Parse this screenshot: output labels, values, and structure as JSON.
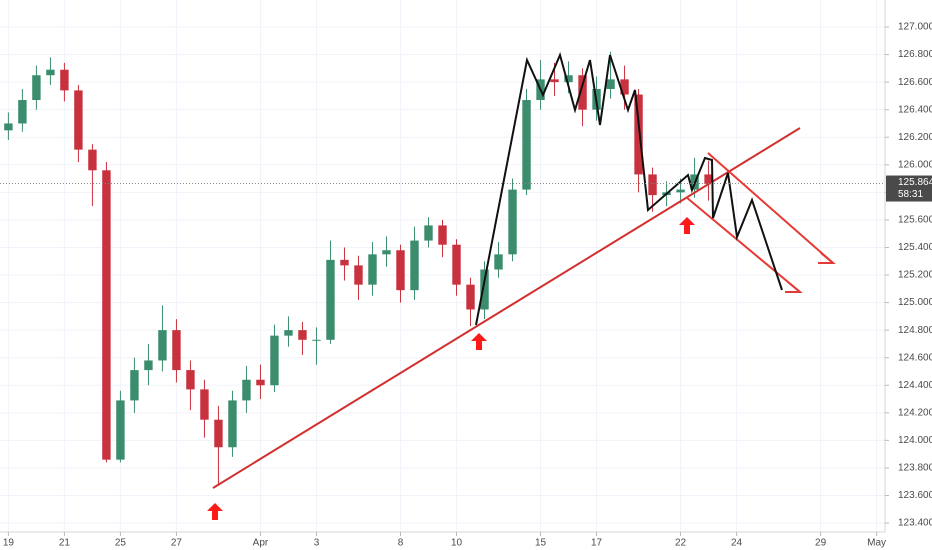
{
  "chart_data": {
    "type": "candlestick",
    "x": [
      0,
      0.5,
      1,
      1.5,
      2,
      2.5,
      3,
      3.5,
      4,
      4.5,
      5,
      5.5,
      6,
      6.5,
      7,
      7.5,
      8,
      8.5,
      9,
      9.5,
      10,
      10.5,
      11,
      11.5,
      12,
      12.5,
      13,
      13.5,
      14,
      14.5,
      15,
      15.5,
      16,
      16.5,
      17,
      17.5,
      18,
      18.5,
      19,
      19.5,
      20,
      20.5,
      21,
      21.5,
      22,
      22.5,
      23,
      23.5,
      24,
      24.5,
      25
    ],
    "open": [
      126.25,
      126.3,
      126.47,
      126.65,
      126.69,
      126.54,
      126.11,
      125.96,
      123.86,
      124.29,
      124.51,
      124.58,
      124.8,
      124.51,
      124.37,
      124.15,
      123.95,
      124.29,
      124.44,
      124.4,
      124.76,
      124.8,
      124.73,
      124.73,
      125.31,
      125.27,
      125.13,
      125.35,
      125.38,
      125.09,
      125.45,
      125.56,
      125.42,
      125.13,
      124.95,
      125.24,
      125.35,
      125.82,
      126.47,
      126.62,
      126.6,
      126.65,
      126.4,
      126.55,
      126.62,
      126.51,
      125.93,
      125.78,
      125.8,
      125.82,
      125.93
    ],
    "high": [
      126.38,
      126.55,
      126.72,
      126.78,
      126.74,
      126.58,
      126.15,
      126.02,
      124.36,
      124.6,
      124.7,
      124.98,
      124.88,
      124.58,
      124.44,
      124.25,
      124.36,
      124.54,
      124.55,
      124.84,
      124.9,
      124.86,
      124.82,
      125.45,
      125.4,
      125.34,
      125.44,
      125.48,
      125.42,
      125.55,
      125.62,
      125.6,
      125.46,
      125.18,
      125.3,
      125.44,
      125.9,
      126.55,
      126.76,
      126.74,
      126.75,
      126.7,
      126.64,
      126.82,
      126.72,
      126.55,
      125.98,
      125.88,
      125.9,
      126.05,
      126.03
    ],
    "low": [
      126.18,
      126.24,
      126.4,
      126.58,
      126.46,
      126.02,
      125.7,
      123.84,
      123.84,
      124.2,
      124.4,
      124.5,
      124.42,
      124.22,
      124.02,
      123.68,
      123.88,
      124.2,
      124.3,
      124.35,
      124.68,
      124.62,
      124.55,
      124.7,
      125.16,
      125.02,
      125.05,
      125.26,
      125.0,
      125.02,
      125.4,
      125.33,
      125.05,
      124.83,
      124.88,
      125.18,
      125.3,
      125.78,
      126.4,
      126.5,
      126.52,
      126.28,
      126.32,
      126.48,
      126.4,
      125.8,
      125.66,
      125.7,
      125.72,
      125.76,
      125.74
    ],
    "close": [
      126.3,
      126.47,
      126.65,
      126.69,
      126.54,
      126.11,
      125.96,
      123.86,
      124.29,
      124.51,
      124.58,
      124.8,
      124.51,
      124.37,
      124.15,
      123.95,
      124.29,
      124.44,
      124.4,
      124.76,
      124.8,
      124.73,
      124.73,
      125.31,
      125.27,
      125.13,
      125.35,
      125.38,
      125.09,
      125.45,
      125.56,
      125.42,
      125.13,
      124.95,
      125.24,
      125.35,
      125.82,
      126.47,
      126.62,
      126.6,
      126.65,
      126.4,
      126.55,
      126.62,
      126.51,
      125.93,
      125.78,
      125.8,
      125.82,
      125.93,
      125.86
    ],
    "up_color": "#3b8d6e",
    "down_color": "#c8323f",
    "xlim": [
      -0.3,
      31.3
    ],
    "xticks": [
      {
        "value": 0,
        "label": "19"
      },
      {
        "value": 2,
        "label": "21"
      },
      {
        "value": 4,
        "label": "25"
      },
      {
        "value": 6,
        "label": "27"
      },
      {
        "value": 9,
        "label": "Apr"
      },
      {
        "value": 11,
        "label": "3"
      },
      {
        "value": 14,
        "label": "8"
      },
      {
        "value": 16,
        "label": "10"
      },
      {
        "value": 19,
        "label": "15"
      },
      {
        "value": 21,
        "label": "17"
      },
      {
        "value": 24,
        "label": "22"
      },
      {
        "value": 26,
        "label": "24"
      },
      {
        "value": 29,
        "label": "29"
      },
      {
        "value": 31,
        "label": "May"
      }
    ],
    "ylim": [
      123.335,
      127.196
    ],
    "yticks": [
      {
        "value": 127.0,
        "label": "127.000"
      },
      {
        "value": 126.8,
        "label": "126.800"
      },
      {
        "value": 126.6,
        "label": "126.600"
      },
      {
        "value": 126.4,
        "label": "126.400"
      },
      {
        "value": 126.2,
        "label": "126.200"
      },
      {
        "value": 126.0,
        "label": "126.000"
      },
      {
        "value": 125.8,
        "label": "125.800"
      },
      {
        "value": 125.6,
        "label": "125.600"
      },
      {
        "value": 125.4,
        "label": "125.400"
      },
      {
        "value": 125.2,
        "label": "125.200"
      },
      {
        "value": 125.0,
        "label": "125.000"
      },
      {
        "value": 124.8,
        "label": "124.800"
      },
      {
        "value": 124.6,
        "label": "124.600"
      },
      {
        "value": 124.4,
        "label": "124.400"
      },
      {
        "value": 124.2,
        "label": "124.200"
      },
      {
        "value": 124.0,
        "label": "124.000"
      },
      {
        "value": 123.8,
        "label": "123.800"
      },
      {
        "value": 123.6,
        "label": "123.600"
      },
      {
        "value": 123.4,
        "label": "123.400"
      }
    ],
    "grid": true,
    "last_price": {
      "value": 125.864,
      "label": "125.864"
    },
    "countdown": "58:31"
  }
}
